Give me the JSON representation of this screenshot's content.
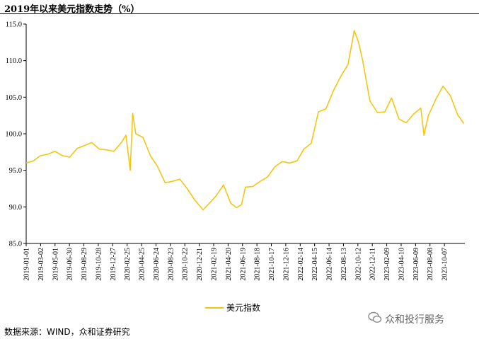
{
  "page": {
    "title": "2019年以来美元指数走势（%）"
  },
  "legend": {
    "label": "美元指数"
  },
  "source": "数据来源：WIND，众和证券研究",
  "watermark": {
    "icon": "wechat-icon",
    "text": "众和投行服务"
  },
  "colors": {
    "line": "#f3c614",
    "axis": "#000000"
  },
  "chart_data": {
    "type": "line",
    "title": "2019年以来美元指数走势（%）",
    "xlabel": "",
    "ylabel": "",
    "ylim": [
      85,
      115
    ],
    "yticks": [
      "85.0",
      "90.0",
      "95.0",
      "100.0",
      "105.0",
      "110.0",
      "115.0"
    ],
    "grid": false,
    "legend_position": "bottom",
    "xticks": [
      "2019-01-01",
      "2019-03-02",
      "2019-05-01",
      "2019-06-30",
      "2019-08-29",
      "2019-10-28",
      "2019-12-27",
      "2020-02-25",
      "2020-04-25",
      "2020-06-24",
      "2020-08-23",
      "2020-10-22",
      "2020-12-21",
      "2021-02-19",
      "2021-04-20",
      "2021-06-19",
      "2021-08-18",
      "2021-10-17",
      "2021-12-16",
      "2022-02-14",
      "2022-04-15",
      "2022-06-14",
      "2022-08-13",
      "2022-10-12",
      "2022-12-11",
      "2023-02-09",
      "2023-04-10",
      "2023-06-09",
      "2023-08-08",
      "2023-10-07"
    ],
    "series": [
      {
        "name": "美元指数",
        "x": [
          "2019-01-01",
          "2019-02-01",
          "2019-03-01",
          "2019-04-01",
          "2019-05-01",
          "2019-06-01",
          "2019-07-01",
          "2019-08-01",
          "2019-09-01",
          "2019-10-01",
          "2019-11-01",
          "2019-12-01",
          "2020-01-01",
          "2020-02-01",
          "2020-02-20",
          "2020-03-09",
          "2020-03-19",
          "2020-04-01",
          "2020-05-01",
          "2020-06-01",
          "2020-07-01",
          "2020-08-01",
          "2020-09-01",
          "2020-10-01",
          "2020-11-01",
          "2020-12-01",
          "2021-01-06",
          "2021-02-01",
          "2021-03-01",
          "2021-04-01",
          "2021-05-01",
          "2021-05-25",
          "2021-06-15",
          "2021-07-01",
          "2021-08-01",
          "2021-09-01",
          "2021-10-01",
          "2021-11-01",
          "2021-12-01",
          "2022-01-01",
          "2022-02-01",
          "2022-03-01",
          "2022-04-01",
          "2022-05-01",
          "2022-06-01",
          "2022-07-01",
          "2022-08-01",
          "2022-09-01",
          "2022-09-27",
          "2022-10-15",
          "2022-11-01",
          "2022-12-01",
          "2023-01-01",
          "2023-02-01",
          "2023-03-01",
          "2023-04-01",
          "2023-05-01",
          "2023-06-01",
          "2023-07-01",
          "2023-07-14",
          "2023-08-01",
          "2023-09-01",
          "2023-10-01",
          "2023-11-01",
          "2023-12-01",
          "2023-12-27"
        ],
        "values": [
          96.0,
          96.3,
          97.0,
          97.2,
          97.6,
          97.0,
          96.8,
          98.0,
          98.4,
          98.8,
          97.9,
          97.8,
          97.6,
          98.8,
          99.8,
          95.0,
          102.8,
          100.0,
          99.5,
          97.0,
          95.5,
          93.3,
          93.5,
          93.8,
          92.5,
          91.0,
          89.6,
          90.5,
          91.5,
          93.0,
          90.5,
          89.9,
          90.3,
          92.7,
          92.8,
          93.5,
          94.1,
          95.5,
          96.2,
          96.0,
          96.3,
          97.9,
          98.7,
          103.0,
          103.4,
          105.8,
          107.8,
          109.5,
          114.1,
          112.5,
          110.0,
          104.5,
          102.9,
          103.0,
          104.9,
          102.0,
          101.5,
          102.7,
          103.5,
          99.8,
          102.5,
          104.7,
          106.5,
          105.2,
          102.6,
          101.4
        ]
      }
    ]
  }
}
